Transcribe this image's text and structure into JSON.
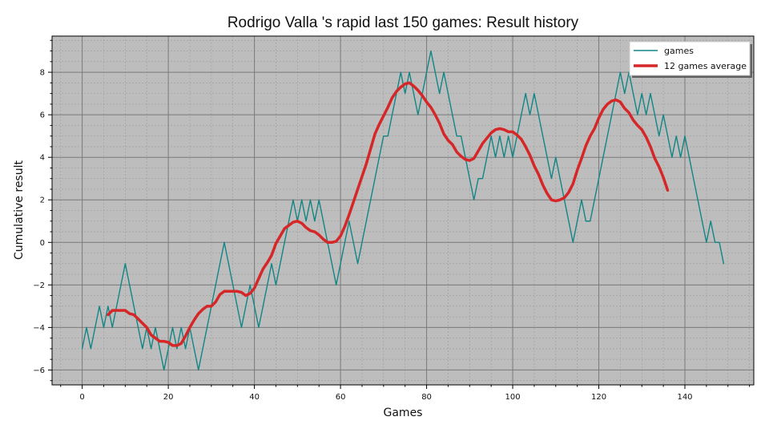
{
  "chart_data": {
    "type": "line",
    "title": "Rodrigo Valla 's rapid last 150 games: Result history",
    "xlabel": "Games",
    "ylabel": "Cumulative result",
    "xlim": [
      -7,
      156
    ],
    "ylim": [
      -6.7,
      9.7
    ],
    "xticks": [
      0,
      20,
      40,
      60,
      80,
      100,
      120,
      140
    ],
    "yticks": [
      -6,
      -4,
      -2,
      0,
      2,
      4,
      6,
      8
    ],
    "grid": true,
    "legend_position": "top-right",
    "colors": {
      "plot_background": "#bdbdbd",
      "games": "#138585",
      "average": "#d62728",
      "major_grid": "#7a7a7a",
      "minor_grid": "#9c9c9c"
    },
    "series": [
      {
        "name": "games",
        "x_start": 0,
        "values": [
          -5,
          -4,
          -5,
          -4,
          -3,
          -4,
          -3,
          -4,
          -3,
          -2,
          -1,
          -2,
          -3,
          -4,
          -5,
          -4,
          -5,
          -4,
          -5,
          -6,
          -5,
          -4,
          -5,
          -4,
          -5,
          -4,
          -5,
          -6,
          -5,
          -4,
          -3,
          -2,
          -1,
          0,
          -1,
          -2,
          -3,
          -4,
          -3,
          -2,
          -3,
          -4,
          -3,
          -2,
          -1,
          -2,
          -1,
          0,
          1,
          2,
          1,
          2,
          1,
          2,
          1,
          2,
          1,
          0,
          -1,
          -2,
          -1,
          0,
          1,
          0,
          -1,
          0,
          1,
          2,
          3,
          4,
          5,
          5,
          6,
          7,
          8,
          7,
          8,
          7,
          6,
          7,
          8,
          9,
          8,
          7,
          8,
          7,
          6,
          5,
          5,
          4,
          3,
          2,
          3,
          3,
          4,
          5,
          4,
          5,
          4,
          5,
          4,
          5,
          6,
          7,
          6,
          7,
          6,
          5,
          4,
          3,
          4,
          3,
          2,
          1,
          0,
          1,
          2,
          1,
          1,
          2,
          3,
          4,
          5,
          6,
          7,
          8,
          7,
          8,
          7,
          6,
          7,
          6,
          7,
          6,
          5,
          6,
          5,
          4,
          5,
          4,
          5,
          4,
          3,
          2,
          1,
          0,
          1,
          0,
          0,
          -1
        ]
      },
      {
        "name": "12 games average",
        "x_start": 6,
        "values": [
          -3.4,
          -3.2,
          -3.2,
          -3.2,
          -3.2,
          -3.35,
          -3.4,
          -3.6,
          -3.8,
          -4.0,
          -4.35,
          -4.5,
          -4.65,
          -4.65,
          -4.7,
          -4.85,
          -4.85,
          -4.75,
          -4.4,
          -4.0,
          -3.65,
          -3.35,
          -3.15,
          -3.0,
          -3.0,
          -2.8,
          -2.45,
          -2.3,
          -2.3,
          -2.3,
          -2.3,
          -2.35,
          -2.5,
          -2.4,
          -2.15,
          -1.7,
          -1.25,
          -0.95,
          -0.6,
          -0.05,
          0.3,
          0.65,
          0.8,
          0.95,
          1.0,
          0.9,
          0.7,
          0.55,
          0.5,
          0.35,
          0.15,
          0.0,
          0.0,
          0.05,
          0.3,
          0.75,
          1.3,
          1.9,
          2.5,
          3.1,
          3.7,
          4.4,
          5.1,
          5.55,
          5.95,
          6.35,
          6.8,
          7.1,
          7.3,
          7.45,
          7.5,
          7.35,
          7.15,
          6.9,
          6.6,
          6.35,
          6.0,
          5.6,
          5.1,
          4.8,
          4.6,
          4.25,
          4.05,
          3.9,
          3.85,
          3.95,
          4.3,
          4.65,
          4.9,
          5.15,
          5.3,
          5.35,
          5.3,
          5.2,
          5.2,
          5.05,
          4.85,
          4.5,
          4.1,
          3.6,
          3.2,
          2.7,
          2.3,
          2.0,
          1.95,
          2.0,
          2.1,
          2.35,
          2.75,
          3.4,
          3.95,
          4.55,
          5.0,
          5.35,
          5.85,
          6.25,
          6.5,
          6.65,
          6.7,
          6.6,
          6.3,
          6.1,
          5.75,
          5.5,
          5.3,
          4.95,
          4.5,
          3.95,
          3.55,
          3.05,
          2.45
        ]
      }
    ]
  }
}
